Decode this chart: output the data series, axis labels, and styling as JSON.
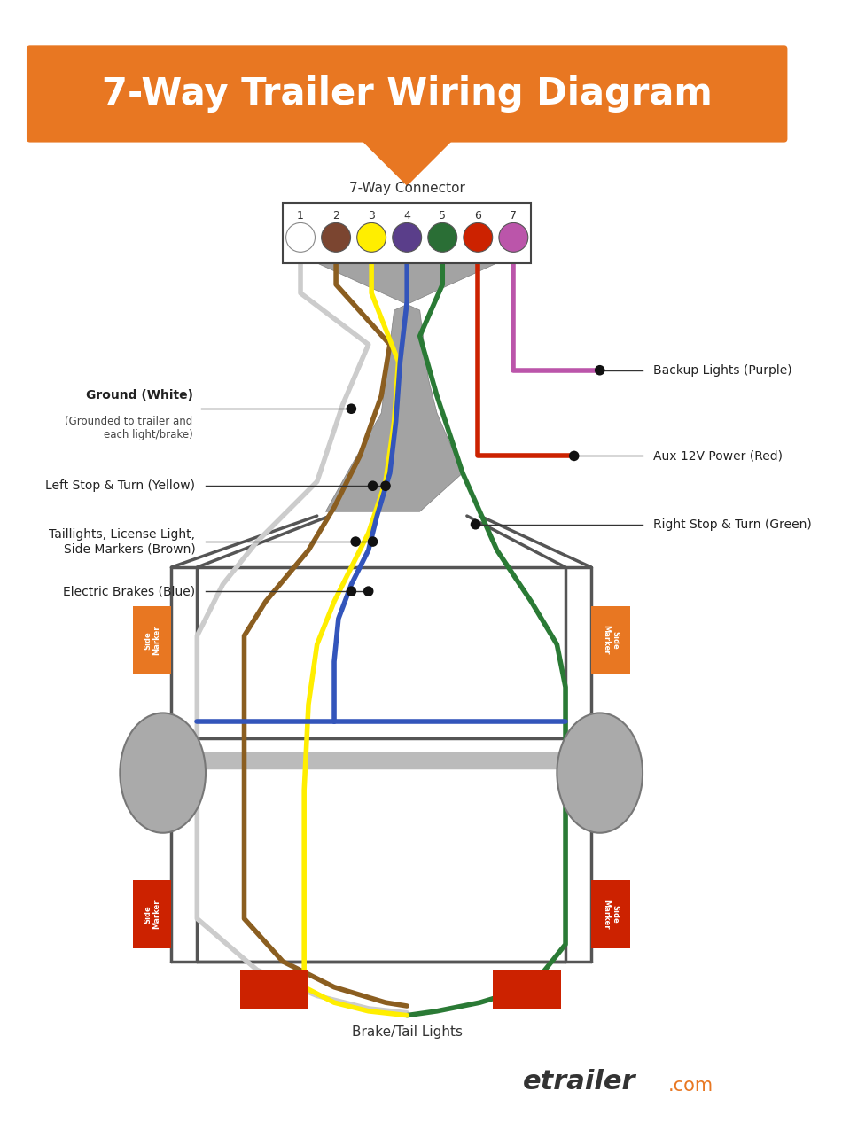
{
  "title": "7-Way Trailer Wiring Diagram",
  "title_color": "#FFFFFF",
  "title_bg_color": "#E87722",
  "bg_color": "#FFFFFF",
  "connector_label": "7-Way Connector",
  "pin_colors": [
    "#FFFFFF",
    "#7B4530",
    "#FFEE00",
    "#5A3E8A",
    "#2A6E35",
    "#CC2200",
    "#BB55AA"
  ],
  "pin_numbers": [
    "1",
    "2",
    "3",
    "4",
    "5",
    "6",
    "7"
  ],
  "footer_text": "etrailer",
  "footer_suffix": ".com",
  "brake_tail_label": "Brake/Tail Lights",
  "orange_color": "#E87722",
  "red_color": "#CC2200",
  "gray_frame": "#888888",
  "gray_sheath": "#999999",
  "gray_wheel": "#AAAAAA",
  "brown_wire": "#8B5E20",
  "yellow_wire": "#FFEE00",
  "blue_wire": "#3355BB",
  "green_wire": "#2A7A35",
  "white_wire": "#CCCCCC",
  "red_wire": "#CC2200",
  "purple_wire": "#BB55AA"
}
